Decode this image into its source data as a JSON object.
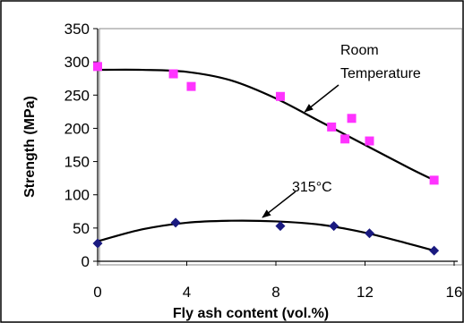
{
  "chart_data": {
    "type": "scatter",
    "title": "",
    "xlabel": "Fly ash content (vol.%)",
    "ylabel": "Strength (MPa)",
    "xlim": [
      0,
      16
    ],
    "ylim": [
      0,
      350
    ],
    "xticks": [
      "0",
      "4",
      "8",
      "12",
      "16"
    ],
    "yticks": [
      "0",
      "50",
      "100",
      "150",
      "200",
      "250",
      "300",
      "350"
    ],
    "grid": false,
    "legend": "none",
    "series": [
      {
        "name": "Room Temperature",
        "marker": "square",
        "color": "#ff33ff",
        "points": [
          [
            0,
            293
          ],
          [
            3.4,
            282
          ],
          [
            4.2,
            263
          ],
          [
            8.2,
            248
          ],
          [
            10.5,
            202
          ],
          [
            11.1,
            184
          ],
          [
            11.4,
            215
          ],
          [
            12.2,
            181
          ],
          [
            15.1,
            122
          ]
        ],
        "trend": [
          [
            0,
            288
          ],
          [
            2,
            288
          ],
          [
            4,
            285
          ],
          [
            6,
            272
          ],
          [
            8,
            245
          ],
          [
            10,
            210
          ],
          [
            12,
            175
          ],
          [
            14,
            140
          ],
          [
            15.1,
            122
          ]
        ]
      },
      {
        "name": "315°C",
        "marker": "diamond",
        "color": "#1a1a80",
        "points": [
          [
            0,
            27
          ],
          [
            3.5,
            58
          ],
          [
            8.2,
            53
          ],
          [
            10.6,
            53
          ],
          [
            12.2,
            42
          ],
          [
            15.1,
            16
          ]
        ],
        "trend": [
          [
            0,
            30
          ],
          [
            2,
            48
          ],
          [
            4,
            58
          ],
          [
            6,
            61
          ],
          [
            8,
            60
          ],
          [
            10,
            55
          ],
          [
            12,
            43
          ],
          [
            14,
            26
          ],
          [
            15.1,
            16
          ]
        ]
      }
    ],
    "annotations": [
      {
        "lines": [
          "Room",
          "Temperature"
        ],
        "series": 0
      },
      {
        "lines": [
          "315°C"
        ],
        "series": 1
      }
    ],
    "line_color": "#000000"
  }
}
